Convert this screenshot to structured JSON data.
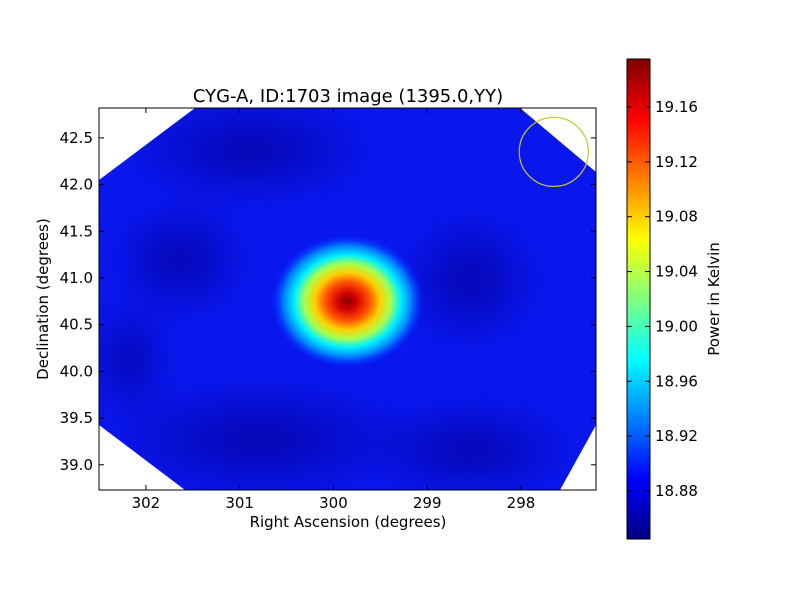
{
  "chart_data": {
    "type": "heatmap",
    "title": "CYG-A, ID:1703 image (1395.0,YY)",
    "xlabel": "Right Ascension (degrees)",
    "ylabel": "Declination (degrees)",
    "x_axis": {
      "inverted": true,
      "range": [
        302.5,
        297.2
      ],
      "ticks": [
        302,
        301,
        300,
        299,
        298
      ],
      "tick_labels": [
        "302",
        "301",
        "300",
        "299",
        "298"
      ]
    },
    "y_axis": {
      "range": [
        38.73,
        42.82
      ],
      "ticks": [
        39.0,
        39.5,
        40.0,
        40.5,
        41.0,
        41.5,
        42.0,
        42.5
      ],
      "tick_labels": [
        "39.0",
        "39.5",
        "40.0",
        "40.5",
        "41.0",
        "41.5",
        "42.0",
        "42.5"
      ]
    },
    "colorbar": {
      "label": "Power in Kelvin",
      "colormap": "jet",
      "range": [
        18.845,
        19.195
      ],
      "ticks": [
        18.88,
        18.92,
        18.96,
        19.0,
        19.04,
        19.08,
        19.12,
        19.16
      ],
      "tick_labels": [
        "18.88",
        "18.92",
        "18.96",
        "19.00",
        "19.04",
        "19.08",
        "19.12",
        "19.16"
      ]
    },
    "peak": {
      "ra": 299.85,
      "dec": 40.75,
      "value": 19.195
    },
    "background_value": 18.87,
    "beam_circle": {
      "ra": 297.65,
      "dec": 42.35,
      "radius_deg": 0.37,
      "color": "#c8c832"
    },
    "colors": {
      "no_data": "#ffffff",
      "frame": "#000000"
    }
  }
}
